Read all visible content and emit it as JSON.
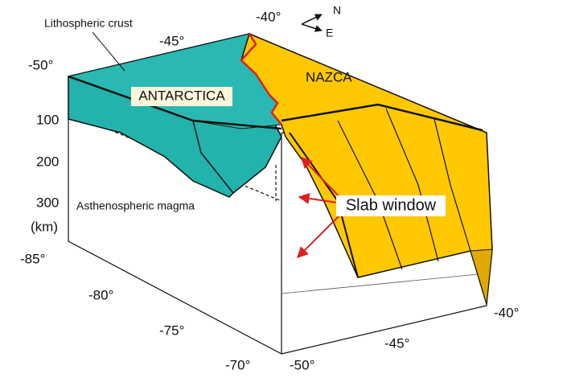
{
  "labels": {
    "layer": "Lithospheric crust",
    "magma": "Asthenospheric magma",
    "slab_window": "Slab window"
  },
  "plates": {
    "nazca": "NAZCA",
    "antarctica": "ANTARCTICA"
  },
  "compass": {
    "north": "N",
    "east": "E"
  },
  "depth_axis": {
    "ticks": [
      "100",
      "200",
      "300"
    ],
    "unit": "(km)"
  },
  "top_axis": {
    "ticks": [
      "-50°",
      "-45°",
      "-40°"
    ]
  },
  "left_axis": {
    "ticks": [
      "-85°",
      "-80°",
      "-75°",
      "-70°"
    ]
  },
  "bottom_axis": {
    "ticks": [
      "-50°",
      "-45°",
      "-40°"
    ]
  }
}
